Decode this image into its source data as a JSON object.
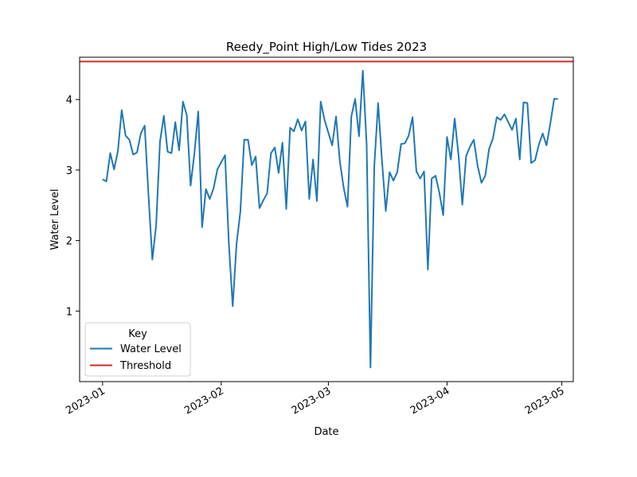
{
  "chart_data": {
    "type": "line",
    "title": "Reedy_Point High/Low Tides 2023",
    "xlabel": "Date",
    "ylabel": "Water Level",
    "x_ticks": [
      "2023-01",
      "2023-02",
      "2023-03",
      "2023-04",
      "2023-05"
    ],
    "y_ticks": [
      1,
      2,
      3,
      4
    ],
    "ylim": [
      0.0,
      4.6
    ],
    "xlim": [
      "2022-12-26",
      "2023-05-04"
    ],
    "grid": false,
    "legend": {
      "title": "Key",
      "placement": "lower-left"
    },
    "series": [
      {
        "name": "Water Level",
        "color": "#1f77b4",
        "x": [
          "2023-01-01",
          "2023-01-02",
          "2023-01-03",
          "2023-01-04",
          "2023-01-05",
          "2023-01-06",
          "2023-01-07",
          "2023-01-08",
          "2023-01-09",
          "2023-01-10",
          "2023-01-11",
          "2023-01-12",
          "2023-01-13",
          "2023-01-14",
          "2023-01-15",
          "2023-01-16",
          "2023-01-17",
          "2023-01-18",
          "2023-01-19",
          "2023-01-20",
          "2023-01-21",
          "2023-01-22",
          "2023-01-23",
          "2023-01-24",
          "2023-01-25",
          "2023-01-26",
          "2023-01-27",
          "2023-01-28",
          "2023-01-29",
          "2023-01-30",
          "2023-01-31",
          "2023-02-01",
          "2023-02-02",
          "2023-02-03",
          "2023-02-04",
          "2023-02-05",
          "2023-02-06",
          "2023-02-07",
          "2023-02-08",
          "2023-02-09",
          "2023-02-10",
          "2023-02-11",
          "2023-02-12",
          "2023-02-13",
          "2023-02-14",
          "2023-02-15",
          "2023-02-16",
          "2023-02-17",
          "2023-02-18",
          "2023-02-19",
          "2023-02-20",
          "2023-02-21",
          "2023-02-22",
          "2023-02-23",
          "2023-02-24",
          "2023-02-25",
          "2023-02-26",
          "2023-02-27",
          "2023-02-28",
          "2023-03-01",
          "2023-03-02",
          "2023-03-03",
          "2023-03-04",
          "2023-03-05",
          "2023-03-06",
          "2023-03-07",
          "2023-03-08",
          "2023-03-09",
          "2023-03-10",
          "2023-03-11",
          "2023-03-12",
          "2023-03-13",
          "2023-03-14",
          "2023-03-15",
          "2023-03-16",
          "2023-03-17",
          "2023-03-18",
          "2023-03-19",
          "2023-03-20",
          "2023-03-21",
          "2023-03-22",
          "2023-03-23",
          "2023-03-24",
          "2023-03-25",
          "2023-03-26",
          "2023-03-27",
          "2023-03-28",
          "2023-03-29",
          "2023-03-30",
          "2023-03-31",
          "2023-04-01",
          "2023-04-02",
          "2023-04-03",
          "2023-04-04",
          "2023-04-05",
          "2023-04-06",
          "2023-04-07",
          "2023-04-08",
          "2023-04-09",
          "2023-04-10",
          "2023-04-11",
          "2023-04-12",
          "2023-04-13",
          "2023-04-14",
          "2023-04-15",
          "2023-04-16",
          "2023-04-17",
          "2023-04-18",
          "2023-04-19",
          "2023-04-20",
          "2023-04-21",
          "2023-04-22",
          "2023-04-23",
          "2023-04-24",
          "2023-04-25",
          "2023-04-26",
          "2023-04-27",
          "2023-04-28",
          "2023-04-29",
          "2023-04-30"
        ],
        "values": [
          2.87,
          2.84,
          3.24,
          3.01,
          3.27,
          3.85,
          3.49,
          3.43,
          3.22,
          3.25,
          3.52,
          3.63,
          2.64,
          1.73,
          2.22,
          3.4,
          3.77,
          3.26,
          3.24,
          3.68,
          3.28,
          3.97,
          3.78,
          2.78,
          3.24,
          3.83,
          2.19,
          2.73,
          2.59,
          2.74,
          3.01,
          3.11,
          3.21,
          1.95,
          1.07,
          1.95,
          2.41,
          3.43,
          3.43,
          3.07,
          3.19,
          2.46,
          2.57,
          2.67,
          3.24,
          3.32,
          2.96,
          3.39,
          2.45,
          3.6,
          3.55,
          3.72,
          3.56,
          3.69,
          2.59,
          3.15,
          2.56,
          3.97,
          3.71,
          3.53,
          3.35,
          3.76,
          3.12,
          2.75,
          2.48,
          3.76,
          4.01,
          3.48,
          4.41,
          3.36,
          0.2,
          3.06,
          3.95,
          3.14,
          2.42,
          2.97,
          2.85,
          2.97,
          3.37,
          3.38,
          3.49,
          3.75,
          2.98,
          2.88,
          2.98,
          1.59,
          2.88,
          2.92,
          2.68,
          2.36,
          3.47,
          3.15,
          3.73,
          3.22,
          2.51,
          3.2,
          3.33,
          3.43,
          3.06,
          2.82,
          2.92,
          3.3,
          3.45,
          3.75,
          3.71,
          3.79,
          3.68,
          3.57,
          3.73,
          3.15,
          3.96,
          3.95,
          3.1,
          3.14,
          3.36,
          3.52,
          3.35,
          3.66,
          4.01,
          4.01
        ]
      },
      {
        "name": "Threshold",
        "color": "#d62728",
        "constant": 4.54
      }
    ]
  }
}
